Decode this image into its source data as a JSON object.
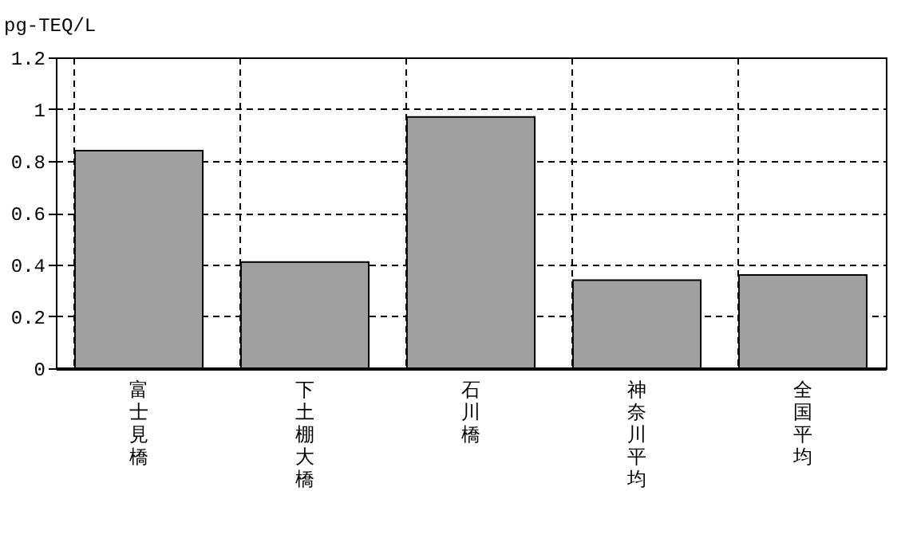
{
  "chart_data": {
    "type": "bar",
    "ylabel": "pg-TEQ/L",
    "categories": [
      "富士見橋",
      "下土棚大橋",
      "石川橋",
      "神奈川平均",
      "全国平均"
    ],
    "values": [
      0.84,
      0.41,
      0.97,
      0.34,
      0.36
    ],
    "color": "#a0a0a0",
    "ylim": [
      0,
      1.2
    ],
    "yticks": [
      0,
      0.2,
      0.4,
      0.6,
      0.8,
      1,
      1.2
    ],
    "grid": true
  }
}
